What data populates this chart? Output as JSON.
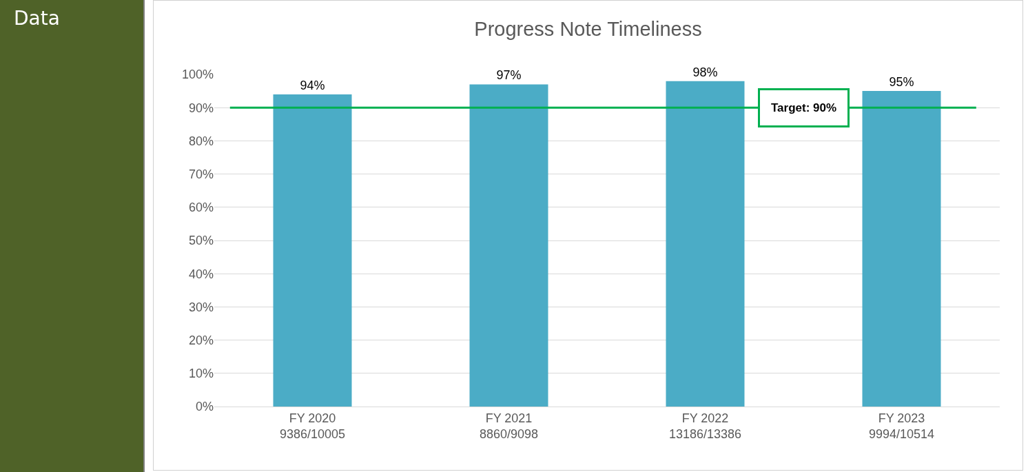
{
  "chart_data": {
    "type": "bar",
    "title": "Progress Note Timeliness",
    "categories": [
      "FY 2020\n9386/10005",
      "FY 2021\n8860/9098",
      "FY 2022\n13186/13386",
      "FY 2023\n9994/10514"
    ],
    "values": [
      94,
      97,
      98,
      95
    ],
    "value_labels": [
      "94%",
      "97%",
      "98%",
      "95%"
    ],
    "color": "#4bacc6",
    "ylim": [
      0,
      100
    ],
    "yticks": [
      {
        "value": 0,
        "label": "0%"
      },
      {
        "value": 10,
        "label": "10%"
      },
      {
        "value": 20,
        "label": "20%"
      },
      {
        "value": 30,
        "label": "30%"
      },
      {
        "value": 40,
        "label": "40%"
      },
      {
        "value": 50,
        "label": "50%"
      },
      {
        "value": 60,
        "label": "60%"
      },
      {
        "value": 70,
        "label": "70%"
      },
      {
        "value": 80,
        "label": "80%"
      },
      {
        "value": 90,
        "label": "90%"
      },
      {
        "value": 100,
        "label": "100%"
      }
    ],
    "grid": "y",
    "ref_lines": [
      {
        "axis": "y",
        "value": 90,
        "label": "Target: 90%",
        "color": "#00b050"
      }
    ],
    "annotations": [
      "Data"
    ]
  }
}
